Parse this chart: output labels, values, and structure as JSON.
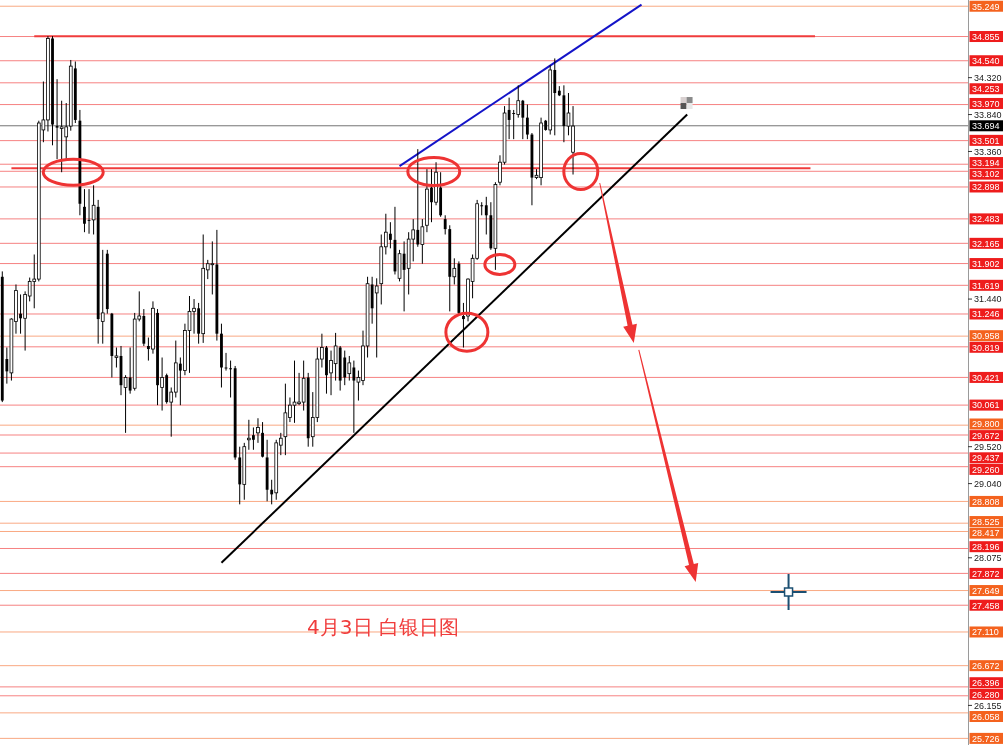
{
  "chart_data": {
    "type": "candlestick",
    "title": "4月3日 白银日图",
    "categories": [
      null,
      null,
      null,
      null,
      null,
      null,
      null,
      null,
      null,
      null,
      null,
      null,
      null,
      null,
      null,
      null,
      null,
      null,
      null,
      null,
      null,
      null,
      null,
      null,
      null,
      null,
      null,
      null,
      null,
      null,
      null,
      null,
      null,
      null,
      null,
      null,
      null,
      null,
      null,
      null,
      null,
      null,
      null,
      null,
      null,
      null,
      null,
      null,
      null,
      null,
      null,
      null,
      null,
      null,
      null,
      null,
      null,
      null,
      null,
      null,
      null,
      null,
      null,
      null,
      null,
      null,
      null,
      null,
      null,
      null,
      null,
      null,
      null,
      null,
      null,
      null,
      null,
      null,
      null,
      null,
      null,
      null,
      null,
      null,
      null,
      null,
      null,
      null,
      null,
      null,
      null,
      null,
      null,
      null,
      null,
      null,
      null,
      null,
      null,
      null,
      null,
      null,
      null,
      null,
      null,
      null,
      null,
      null,
      null,
      null,
      null,
      null,
      null,
      null,
      null,
      null,
      null,
      null,
      null,
      null,
      null,
      null,
      null,
      null,
      null,
      null,
      null,
      null,
      null,
      null,
      null,
      null,
      null,
      null,
      null,
      null,
      null,
      null,
      null,
      null,
      null,
      null,
      null,
      null,
      null,
      null,
      null,
      null,
      null,
      null,
      null,
      null,
      null,
      null,
      null,
      null,
      null,
      null,
      null,
      null,
      null,
      null,
      null,
      null,
      null,
      null,
      null,
      null,
      null,
      null,
      null,
      null,
      null,
      null,
      null,
      null,
      null,
      null,
      null,
      null,
      null,
      null,
      null,
      null,
      null,
      null,
      null,
      null,
      null,
      null,
      null,
      null,
      null,
      null,
      null,
      null,
      null,
      null,
      null,
      null,
      null,
      null,
      null,
      null,
      null,
      null,
      null,
      null,
      null,
      null,
      null,
      null
    ],
    "ohlc": [
      [
        31.73,
        31.8,
        30.1,
        30.12
      ],
      [
        30.66,
        30.81,
        30.34,
        30.5
      ],
      [
        30.48,
        31.19,
        30.38,
        31.18
      ],
      [
        31.15,
        31.63,
        30.99,
        31.55
      ],
      [
        31.25,
        31.5,
        30.99,
        31.19
      ],
      [
        31.19,
        31.54,
        30.77,
        31.5
      ],
      [
        31.48,
        31.72,
        31.41,
        31.67
      ],
      [
        31.67,
        32.02,
        31.32,
        31.7
      ],
      [
        31.7,
        33.76,
        31.67,
        33.73
      ],
      [
        33.64,
        34.27,
        33.48,
        33.77
      ],
      [
        33.77,
        34.86,
        33.62,
        34.83
      ],
      [
        34.83,
        34.86,
        33.44,
        33.71
      ],
      [
        33.69,
        34.3,
        33.26,
        33.67
      ],
      [
        33.66,
        34.02,
        33.09,
        33.68
      ],
      [
        33.55,
        33.99,
        33.26,
        33.68
      ],
      [
        33.69,
        34.55,
        33.63,
        34.47
      ],
      [
        34.44,
        34.53,
        33.73,
        33.77
      ],
      [
        33.76,
        33.9,
        32.53,
        32.68
      ],
      [
        32.64,
        32.87,
        32.31,
        32.42
      ],
      [
        32.47,
        32.87,
        32.29,
        32.46
      ],
      [
        32.47,
        32.92,
        32.28,
        32.66
      ],
      [
        32.64,
        32.73,
        30.86,
        31.18
      ],
      [
        31.15,
        32.08,
        30.86,
        31.26
      ],
      [
        32.03,
        32.08,
        31.25,
        31.31
      ],
      [
        31.25,
        31.26,
        30.42,
        30.7
      ],
      [
        30.68,
        30.81,
        30.55,
        30.7
      ],
      [
        30.7,
        30.83,
        30.19,
        30.32
      ],
      [
        30.29,
        30.45,
        29.7,
        30.42
      ],
      [
        30.42,
        30.81,
        30.21,
        30.25
      ],
      [
        30.28,
        31.26,
        30.25,
        31.18
      ],
      [
        31.18,
        31.54,
        31.15,
        31.22
      ],
      [
        31.22,
        31.31,
        30.83,
        30.86
      ],
      [
        30.83,
        30.94,
        30.64,
        30.79
      ],
      [
        30.79,
        31.41,
        30.73,
        31.32
      ],
      [
        31.26,
        31.31,
        30.06,
        30.32
      ],
      [
        30.29,
        30.68,
        29.99,
        30.42
      ],
      [
        30.45,
        30.47,
        30.08,
        30.1
      ],
      [
        30.1,
        30.29,
        29.65,
        30.23
      ],
      [
        30.23,
        30.9,
        30.16,
        30.61
      ],
      [
        30.6,
        30.68,
        30.06,
        30.51
      ],
      [
        30.51,
        31.12,
        30.45,
        31.03
      ],
      [
        31.03,
        31.48,
        30.48,
        31.28
      ],
      [
        31.28,
        31.44,
        30.99,
        31.32
      ],
      [
        31.32,
        31.39,
        30.86,
        30.99
      ],
      [
        30.99,
        32.28,
        30.87,
        31.84
      ],
      [
        31.82,
        31.95,
        31.7,
        31.9
      ],
      [
        31.89,
        32.19,
        31.5,
        31.9
      ],
      [
        31.89,
        32.34,
        30.9,
        30.99
      ],
      [
        30.99,
        31.12,
        30.29,
        30.55
      ],
      [
        30.55,
        30.74,
        30.51,
        30.54
      ],
      [
        30.54,
        30.64,
        30.16,
        30.53
      ],
      [
        30.54,
        30.57,
        29.35,
        29.38
      ],
      [
        29.38,
        29.52,
        28.77,
        29.03
      ],
      [
        29.03,
        29.57,
        28.83,
        29.52
      ],
      [
        29.61,
        29.87,
        29.48,
        29.63
      ],
      [
        29.67,
        29.77,
        29.48,
        29.61
      ],
      [
        29.7,
        29.89,
        29.57,
        29.77
      ],
      [
        29.7,
        29.84,
        29.38,
        29.39
      ],
      [
        29.38,
        29.61,
        28.81,
        28.96
      ],
      [
        28.96,
        29.09,
        28.77,
        28.9
      ],
      [
        28.92,
        29.61,
        28.83,
        29.57
      ],
      [
        29.54,
        29.7,
        29.41,
        29.63
      ],
      [
        29.65,
        30.34,
        29.41,
        29.96
      ],
      [
        29.9,
        30.16,
        29.84,
        30.06
      ],
      [
        30.06,
        30.64,
        29.83,
        30.1
      ],
      [
        30.08,
        30.48,
        30.06,
        30.1
      ],
      [
        30.1,
        30.64,
        29.99,
        30.41
      ],
      [
        30.42,
        30.48,
        29.52,
        29.63
      ],
      [
        29.65,
        30.23,
        29.52,
        29.9
      ],
      [
        29.9,
        30.81,
        29.84,
        30.66
      ],
      [
        30.66,
        30.99,
        30.55,
        30.81
      ],
      [
        30.81,
        30.83,
        30.21,
        30.45
      ],
      [
        30.48,
        30.77,
        30.19,
        30.64
      ],
      [
        30.6,
        31.0,
        30.38,
        30.83
      ],
      [
        30.81,
        30.83,
        30.25,
        30.38
      ],
      [
        30.68,
        30.77,
        30.32,
        30.42
      ],
      [
        30.47,
        30.7,
        30.38,
        30.61
      ],
      [
        30.55,
        30.64,
        29.7,
        30.38
      ],
      [
        30.36,
        30.51,
        30.12,
        30.42
      ],
      [
        30.38,
        31.03,
        30.32,
        30.83
      ],
      [
        30.83,
        31.73,
        30.68,
        31.64
      ],
      [
        31.63,
        31.73,
        31.12,
        31.32
      ],
      [
        31.52,
        31.71,
        30.68,
        31.61
      ],
      [
        31.64,
        32.28,
        31.37,
        32.12
      ],
      [
        32.12,
        32.55,
        32.02,
        32.31
      ],
      [
        32.29,
        32.44,
        32.1,
        32.21
      ],
      [
        32.21,
        32.64,
        31.76,
        31.8
      ],
      [
        31.71,
        32.08,
        31.67,
        32.03
      ],
      [
        32.03,
        32.19,
        31.28,
        31.82
      ],
      [
        31.84,
        32.31,
        31.5,
        32.22
      ],
      [
        32.22,
        32.48,
        31.93,
        32.34
      ],
      [
        32.34,
        33.39,
        32.12,
        32.15
      ],
      [
        32.15,
        32.48,
        31.9,
        32.38
      ],
      [
        32.4,
        33.13,
        32.31,
        32.87
      ],
      [
        32.89,
        33.13,
        32.44,
        32.7
      ],
      [
        32.7,
        33.22,
        32.66,
        33.09
      ],
      [
        32.89,
        33.09,
        32.51,
        32.53
      ],
      [
        32.48,
        32.53,
        32.28,
        32.35
      ],
      [
        32.35,
        32.4,
        31.28,
        31.73
      ],
      [
        31.73,
        31.97,
        31.63,
        31.84
      ],
      [
        31.9,
        31.93,
        31.24,
        31.26
      ],
      [
        31.22,
        31.39,
        30.81,
        31.18
      ],
      [
        31.22,
        31.71,
        31.15,
        31.7
      ],
      [
        31.67,
        32.02,
        31.45,
        31.97
      ],
      [
        31.97,
        32.73,
        31.95,
        32.68
      ],
      [
        32.66,
        32.7,
        32.53,
        32.65
      ],
      [
        32.66,
        32.77,
        32.28,
        32.53
      ],
      [
        32.53,
        32.7,
        32.08,
        32.1
      ],
      [
        32.1,
        32.96,
        31.82,
        32.93
      ],
      [
        32.96,
        33.31,
        32.92,
        33.22
      ],
      [
        33.22,
        33.95,
        33.19,
        33.86
      ],
      [
        33.9,
        34.06,
        33.52,
        33.77
      ],
      [
        33.86,
        33.9,
        33.52,
        33.85
      ],
      [
        33.84,
        34.22,
        33.8,
        34.02
      ],
      [
        34.02,
        34.03,
        33.52,
        33.8
      ],
      [
        33.8,
        33.97,
        33.52,
        33.58
      ],
      [
        33.58,
        33.6,
        32.66,
        33.02
      ],
      [
        33.02,
        33.13,
        33.0,
        33.05
      ],
      [
        33.02,
        33.8,
        32.92,
        33.73
      ],
      [
        33.76,
        33.77,
        33.63,
        33.64
      ],
      [
        33.64,
        34.48,
        33.58,
        34.42
      ],
      [
        34.42,
        34.57,
        33.57,
        34.12
      ],
      [
        34.15,
        34.21,
        34.08,
        34.09
      ],
      [
        34.09,
        34.22,
        33.48,
        33.69
      ],
      [
        33.69,
        34.12,
        33.57,
        33.86
      ],
      [
        33.35,
        33.95,
        33.06,
        33.69
      ],
      null,
      null,
      null,
      null,
      null,
      null,
      null,
      null,
      null,
      null,
      null,
      null,
      null,
      null,
      null,
      null,
      null,
      null,
      null,
      null,
      null,
      null,
      null,
      null,
      null,
      null,
      null,
      null,
      null,
      null,
      null,
      null,
      null,
      null,
      null,
      null,
      null,
      null,
      null,
      null,
      null,
      null,
      null,
      null,
      null,
      null,
      null,
      null,
      null,
      null,
      null,
      null,
      null,
      null,
      null,
      null,
      null,
      null,
      null,
      null,
      null,
      null,
      null,
      null,
      null,
      null,
      null,
      null,
      null,
      null,
      null,
      null,
      null,
      null,
      null,
      null,
      null,
      null,
      null,
      null,
      null,
      null,
      null,
      null,
      null,
      null
    ],
    "color": "#000000",
    "series": [
      {
        "type": "line",
        "color": "#f03c3c",
        "values": [
          null,
          null,
          null,
          null,
          null,
          null,
          null,
          34.86,
          null,
          null,
          null,
          null,
          null,
          null,
          null,
          null,
          null,
          null,
          null,
          null,
          null,
          null,
          null,
          null,
          null,
          null,
          null,
          null,
          null,
          null,
          null,
          null,
          null,
          null,
          null,
          null,
          null,
          null,
          null,
          null,
          null,
          null,
          null,
          null,
          null,
          null,
          null,
          null,
          null,
          null,
          null,
          null,
          null,
          null,
          null,
          null,
          null,
          null,
          null,
          null,
          null,
          null,
          null,
          null,
          null,
          null,
          null,
          null,
          null,
          null,
          null,
          null,
          null,
          null,
          null,
          null,
          null,
          null,
          null,
          null,
          null,
          null,
          null,
          null,
          null,
          null,
          null,
          null,
          null,
          null,
          null,
          null,
          null,
          null,
          null,
          null,
          null,
          null,
          null,
          null,
          null,
          null,
          null,
          null,
          null,
          null,
          null,
          null,
          null,
          null,
          null,
          null,
          null,
          null,
          null,
          null,
          null,
          null,
          null,
          null,
          null,
          null,
          null,
          null,
          null,
          null,
          null,
          null,
          null,
          null,
          null,
          null,
          null,
          null,
          null,
          null,
          null,
          null,
          null,
          null,
          null,
          null,
          null,
          null,
          null,
          null,
          null,
          null,
          null,
          null,
          null,
          null,
          null,
          null,
          null,
          null,
          null,
          null,
          null,
          null,
          null,
          null,
          null,
          null,
          null,
          null,
          null,
          null,
          null,
          null,
          null,
          null,
          null,
          null,
          null,
          null,
          null,
          null,
          34.86,
          null,
          null,
          null,
          null,
          null,
          null,
          null,
          null,
          null,
          null,
          null,
          null,
          null,
          null,
          null,
          null,
          null,
          null,
          null,
          null,
          null,
          null,
          null,
          null,
          null,
          null,
          null,
          null,
          null,
          null,
          null,
          null,
          null
        ]
      },
      {
        "type": "line",
        "color": "#f03c3c",
        "values": [
          null,
          null,
          33.14,
          null,
          null,
          null,
          null,
          null,
          null,
          null,
          null,
          null,
          null,
          null,
          null,
          null,
          null,
          null,
          null,
          null,
          null,
          null,
          null,
          null,
          null,
          null,
          null,
          null,
          null,
          null,
          null,
          null,
          null,
          null,
          null,
          null,
          null,
          null,
          null,
          null,
          null,
          null,
          null,
          null,
          null,
          null,
          null,
          null,
          null,
          null,
          null,
          null,
          null,
          null,
          null,
          null,
          null,
          null,
          null,
          null,
          null,
          null,
          null,
          null,
          null,
          null,
          null,
          null,
          null,
          null,
          null,
          null,
          null,
          null,
          null,
          null,
          null,
          null,
          null,
          null,
          null,
          null,
          null,
          null,
          null,
          null,
          null,
          null,
          null,
          null,
          null,
          null,
          null,
          null,
          null,
          null,
          null,
          null,
          null,
          null,
          null,
          null,
          null,
          null,
          null,
          null,
          null,
          null,
          null,
          null,
          null,
          null,
          null,
          null,
          null,
          null,
          null,
          null,
          null,
          null,
          null,
          null,
          null,
          null,
          null,
          null,
          null,
          null,
          null,
          null,
          null,
          null,
          null,
          null,
          null,
          null,
          null,
          null,
          null,
          null,
          null,
          null,
          null,
          null,
          null,
          null,
          null,
          null,
          null,
          null,
          null,
          null,
          null,
          null,
          null,
          null,
          null,
          null,
          null,
          null,
          null,
          null,
          null,
          null,
          null,
          null,
          null,
          null,
          null,
          null,
          null,
          null,
          null,
          null,
          null,
          null,
          null,
          33.14,
          null,
          null,
          null,
          null,
          null,
          null,
          null,
          null,
          null,
          null,
          null,
          null,
          null,
          null,
          null,
          null,
          null,
          null,
          null,
          null,
          null,
          null,
          null,
          null,
          null,
          null,
          null,
          null,
          null,
          null,
          null,
          null,
          null,
          null
        ]
      },
      {
        "type": "line",
        "color": "#1414c8",
        "values": [
          null,
          null,
          null,
          null,
          null,
          null,
          null,
          null,
          null,
          null,
          null,
          null,
          null,
          null,
          null,
          null,
          null,
          null,
          null,
          null,
          null,
          null,
          null,
          null,
          null,
          null,
          null,
          null,
          null,
          null,
          null,
          null,
          null,
          null,
          null,
          null,
          null,
          null,
          null,
          null,
          null,
          null,
          null,
          null,
          null,
          null,
          null,
          null,
          null,
          null,
          null,
          null,
          null,
          null,
          null,
          null,
          null,
          null,
          null,
          null,
          null,
          null,
          null,
          null,
          null,
          null,
          null,
          null,
          null,
          null,
          null,
          null,
          null,
          null,
          null,
          null,
          null,
          null,
          null,
          null,
          null,
          null,
          null,
          null,
          null,
          null,
          null,
          33.17,
          null,
          null,
          null,
          null,
          null,
          null,
          null,
          null,
          null,
          null,
          null,
          null,
          null,
          null,
          null,
          null,
          null,
          null,
          null,
          null,
          null,
          null,
          null,
          null,
          null,
          null,
          null,
          null,
          null,
          null,
          null,
          null,
          null,
          null,
          null,
          null,
          null,
          null,
          null,
          null,
          null,
          null,
          null,
          null,
          null,
          null,
          null,
          null,
          null,
          null,
          null,
          null,
          35.27,
          null,
          null,
          null,
          null,
          null,
          null,
          null,
          null,
          null,
          null,
          null,
          null,
          null,
          null,
          null,
          null,
          null,
          null,
          null,
          null,
          null,
          null,
          null,
          null,
          null,
          null,
          null,
          null,
          null,
          null,
          null,
          null,
          null,
          null,
          null,
          null,
          null,
          null,
          null,
          null,
          null,
          null,
          null,
          null,
          null,
          null,
          null,
          null,
          null,
          null,
          null,
          null,
          null,
          null,
          null,
          null,
          null,
          null,
          null,
          null,
          null,
          null,
          null,
          null,
          null,
          null,
          null,
          null,
          null,
          null,
          null
        ]
      },
      {
        "type": "line",
        "color": "#000000",
        "values": [
          null,
          null,
          null,
          null,
          null,
          null,
          null,
          null,
          null,
          null,
          null,
          null,
          null,
          null,
          null,
          null,
          null,
          null,
          null,
          null,
          null,
          null,
          null,
          null,
          null,
          null,
          null,
          null,
          null,
          null,
          null,
          null,
          null,
          null,
          null,
          null,
          null,
          null,
          null,
          null,
          null,
          null,
          null,
          null,
          null,
          null,
          null,
          null,
          28.01,
          null,
          null,
          null,
          null,
          null,
          null,
          null,
          null,
          null,
          null,
          null,
          null,
          null,
          null,
          null,
          null,
          null,
          null,
          null,
          null,
          null,
          null,
          null,
          null,
          null,
          null,
          null,
          null,
          null,
          null,
          null,
          null,
          null,
          null,
          null,
          null,
          null,
          null,
          null,
          null,
          null,
          null,
          null,
          null,
          null,
          null,
          null,
          null,
          null,
          null,
          null,
          null,
          null,
          null,
          null,
          null,
          null,
          null,
          null,
          null,
          null,
          null,
          null,
          null,
          null,
          null,
          null,
          null,
          null,
          null,
          null,
          null,
          null,
          null,
          null,
          null,
          null,
          null,
          null,
          null,
          null,
          null,
          null,
          null,
          null,
          null,
          null,
          null,
          null,
          null,
          null,
          null,
          null,
          null,
          null,
          null,
          null,
          null,
          null,
          null,
          null,
          33.84,
          null,
          null,
          null,
          null,
          null,
          null,
          null,
          null,
          null,
          null,
          null,
          null,
          null,
          null,
          null,
          null,
          null,
          null,
          null,
          null,
          null,
          null,
          null,
          null,
          null,
          null,
          null,
          null,
          null,
          null,
          null,
          null,
          null,
          null,
          null,
          null,
          null,
          null,
          null,
          null,
          null,
          null,
          null,
          null,
          null,
          null,
          null,
          null,
          null,
          null,
          null,
          null,
          null,
          null,
          null,
          null,
          null,
          null,
          null,
          null,
          null
        ]
      }
    ],
    "ylim": [
      25.64,
      35.33
    ],
    "yticks": [
      {
        "value": 34.32,
        "label": "34.320"
      },
      {
        "value": 33.84,
        "label": "33.840"
      },
      {
        "value": 33.36,
        "label": "33.360"
      },
      {
        "value": 31.44,
        "label": "31.440"
      },
      {
        "value": 29.52,
        "label": "29.520"
      },
      {
        "value": 29.04,
        "label": "29.040"
      },
      28.075,
      26.155
    ],
    "tick_labels": "y",
    "ref_lines": [
      {
        "axis": "y",
        "value": 35.249,
        "label": "35.249",
        "color": "#f4621e"
      },
      {
        "axis": "y",
        "value": 34.855,
        "label": "34.855",
        "color": "#ee1c1c"
      },
      {
        "axis": "y",
        "value": 34.54,
        "label": "34.540",
        "color": "#ee1c1c"
      },
      {
        "axis": "y",
        "value": 34.253,
        "label": "34.253",
        "color": "#ee1c1c"
      },
      {
        "axis": "y",
        "value": 33.97,
        "label": "33.970",
        "color": "#ee1c1c"
      },
      {
        "axis": "y",
        "value": 33.694,
        "label": "33.694",
        "color": "#000000"
      },
      {
        "axis": "y",
        "value": 33.501,
        "label": "33.501",
        "color": "#ee1c1c"
      },
      {
        "axis": "y",
        "value": 33.194,
        "label": "33.194",
        "color": "#ee1c1c"
      },
      {
        "axis": "y",
        "value": 33.102,
        "label": "33.102",
        "color": "#ee1c1c"
      },
      {
        "axis": "y",
        "value": 32.898,
        "label": "32.898",
        "color": "#ee1c1c"
      },
      {
        "axis": "y",
        "value": 32.483,
        "label": "32.483",
        "color": "#ee1c1c"
      },
      {
        "axis": "y",
        "value": 32.165,
        "label": "32.165",
        "color": "#ee1c1c"
      },
      {
        "axis": "y",
        "value": 31.902,
        "label": "31.902",
        "color": "#ee1c1c"
      },
      {
        "axis": "y",
        "value": 31.619,
        "label": "31.619",
        "color": "#ee1c1c"
      },
      {
        "axis": "y",
        "value": 31.246,
        "label": "31.246",
        "color": "#ee1c1c"
      },
      {
        "axis": "y",
        "value": 30.958,
        "label": "30.958",
        "color": "#f4621e"
      },
      {
        "axis": "y",
        "value": 30.819,
        "label": "30.819",
        "color": "#ee1c1c"
      },
      {
        "axis": "y",
        "value": 30.421,
        "label": "30.421",
        "color": "#ee1c1c"
      },
      {
        "axis": "y",
        "value": 30.061,
        "label": "30.061",
        "color": "#ee1c1c"
      },
      {
        "axis": "y",
        "value": 29.8,
        "label": "29.800",
        "color": "#f4621e"
      },
      {
        "axis": "y",
        "value": 29.672,
        "label": "29.672",
        "color": "#ee1c1c"
      },
      {
        "axis": "y",
        "value": 29.437,
        "label": "29.437",
        "color": "#ee1c1c"
      },
      {
        "axis": "y",
        "value": 29.26,
        "label": "29.260",
        "color": "#ee1c1c"
      },
      {
        "axis": "y",
        "value": 28.808,
        "label": "28.808",
        "color": "#f4621e"
      },
      {
        "axis": "y",
        "value": 28.525,
        "label": "28.525",
        "color": "#f4621e"
      },
      {
        "axis": "y",
        "value": 28.417,
        "label": "28.417",
        "color": "#f4621e"
      },
      {
        "axis": "y",
        "value": 28.196,
        "label": "28.196",
        "color": "#ee1c1c"
      },
      {
        "axis": "y",
        "value": 27.872,
        "label": "27.872",
        "color": "#ee1c1c"
      },
      {
        "axis": "y",
        "value": 27.649,
        "label": "27.649",
        "color": "#f4621e"
      },
      {
        "axis": "y",
        "value": 27.458,
        "label": "27.458",
        "color": "#ee1c1c"
      },
      {
        "axis": "y",
        "value": 27.11,
        "label": "27.110",
        "color": "#f4621e"
      },
      {
        "axis": "y",
        "value": 26.672,
        "label": "26.672",
        "color": "#f4621e"
      },
      {
        "axis": "y",
        "value": 26.396,
        "label": "26.396",
        "color": "#ee1c1c"
      },
      {
        "axis": "y",
        "value": 26.28,
        "label": "26.280",
        "color": "#ee1c1c"
      },
      {
        "axis": "y",
        "value": 26.058,
        "label": "26.058",
        "color": "#f4621e"
      },
      {
        "axis": "y",
        "value": 25.726,
        "label": "25.726",
        "color": "#f4621e"
      }
    ]
  }
}
